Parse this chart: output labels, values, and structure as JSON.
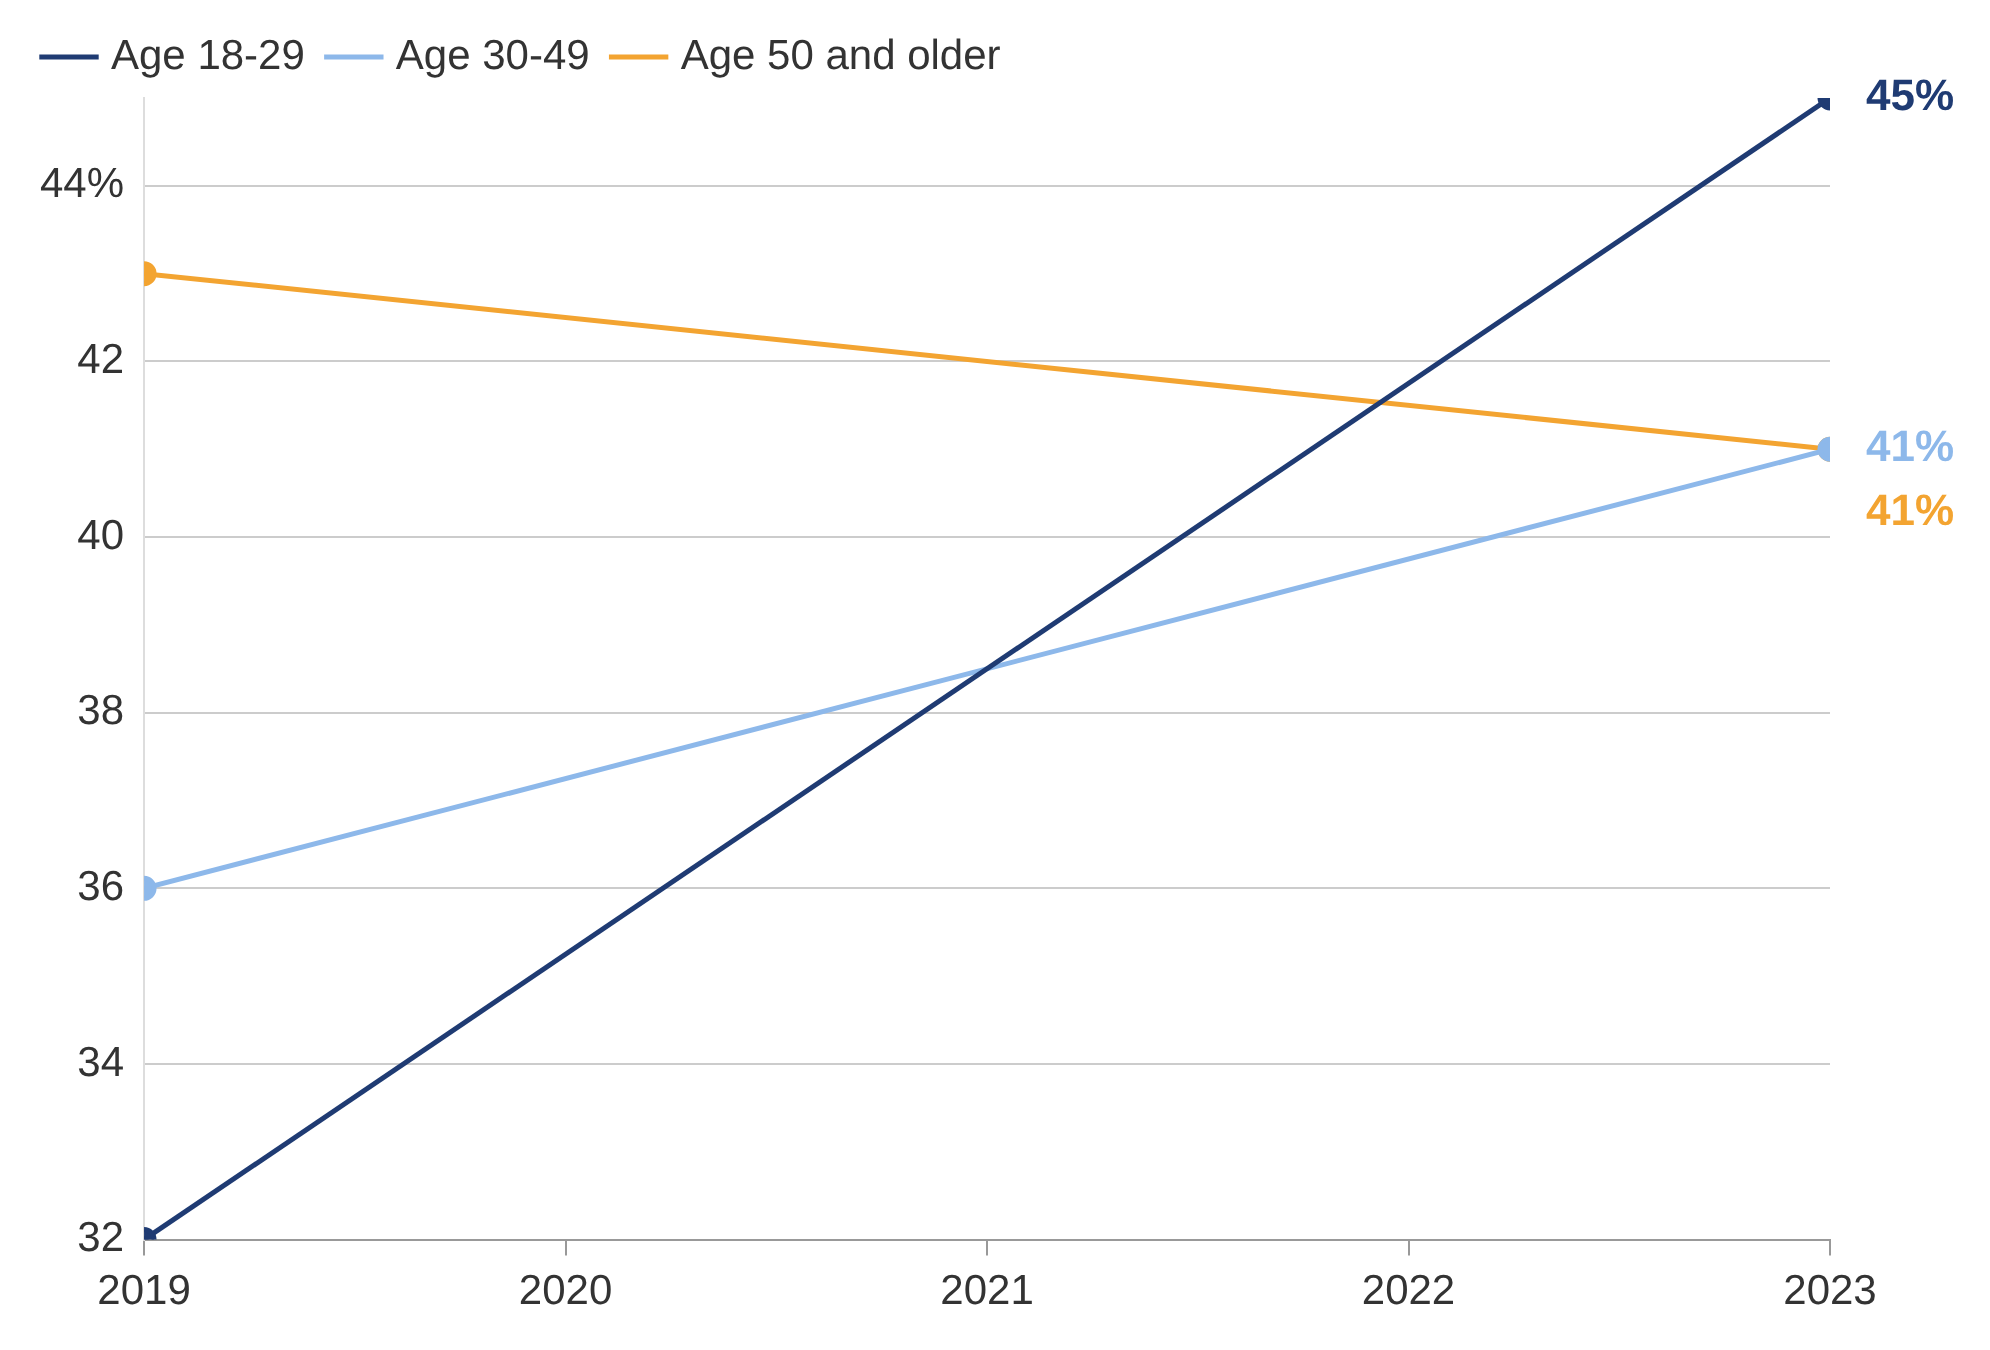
{
  "chart_data": {
    "type": "line",
    "x": [
      2019,
      2023
    ],
    "series": [
      {
        "name": "Age 18-29",
        "color": "#1f3b73",
        "values": [
          32,
          45
        ],
        "value_labels": [
          null,
          "45%"
        ]
      },
      {
        "name": "Age 30-49",
        "color": "#8db8ea",
        "values": [
          36,
          41
        ],
        "value_labels": [
          null,
          "41%"
        ]
      },
      {
        "name": "Age 50 and older",
        "color": "#f3a431",
        "values": [
          43,
          41
        ],
        "value_labels": [
          null,
          "41%"
        ]
      }
    ],
    "xlim": [
      2019,
      2023
    ],
    "xticks": [
      2019,
      2020,
      2021,
      2022,
      2023
    ],
    "ylim": [
      32,
      45
    ],
    "yticks": [
      32,
      34,
      36,
      38,
      40,
      42,
      {
        "value": 44,
        "label": "44%"
      }
    ],
    "grid": "y",
    "legend": "top left",
    "marker": "circle",
    "line_style": "solid"
  }
}
